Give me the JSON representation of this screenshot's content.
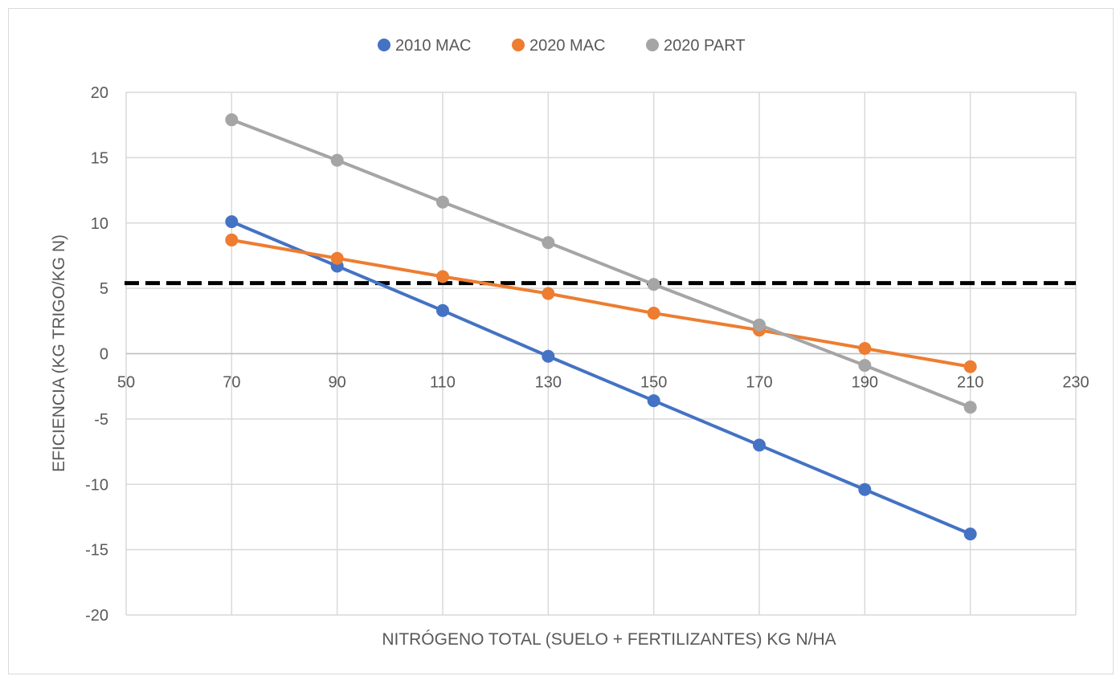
{
  "chart_data": {
    "type": "line",
    "title": "",
    "xlabel": "NITRÓGENO TOTAL (SUELO + FERTILIZANTES) KG N/HA",
    "ylabel": "EFICIENCIA (KG TRIGO/KG N)",
    "xlim": [
      50,
      230
    ],
    "ylim": [
      -20,
      20
    ],
    "x_ticks": [
      50,
      70,
      90,
      110,
      130,
      150,
      170,
      190,
      210,
      230
    ],
    "y_ticks": [
      20,
      15,
      10,
      5,
      0,
      -5,
      -10,
      -15,
      -20
    ],
    "x_tick_labels": [
      "50",
      "70",
      "90",
      "110",
      "130",
      "150",
      "170",
      "190",
      "210",
      "230"
    ],
    "y_tick_labels": [
      "20",
      "15",
      "10",
      "5",
      "0",
      "-5",
      "-10",
      "-15",
      "-20"
    ],
    "grid": true,
    "legend_position": "top",
    "x": [
      70,
      90,
      110,
      130,
      150,
      170,
      190,
      210
    ],
    "series": [
      {
        "name": "2010 MAC",
        "color": "#4472c4",
        "values": [
          10.1,
          6.7,
          3.3,
          -0.2,
          -3.6,
          -7.0,
          -10.4,
          -13.8
        ]
      },
      {
        "name": "2020 MAC",
        "color": "#ed7d31",
        "values": [
          8.7,
          7.3,
          5.9,
          4.6,
          3.1,
          1.8,
          0.4,
          -1.0
        ]
      },
      {
        "name": "2020 PART",
        "color": "#a5a5a5",
        "values": [
          17.9,
          14.8,
          11.6,
          8.5,
          5.3,
          2.2,
          -0.9,
          -4.1
        ]
      }
    ],
    "reference_line": {
      "y": 5.4,
      "style": "dashed",
      "color": "#000000"
    }
  }
}
